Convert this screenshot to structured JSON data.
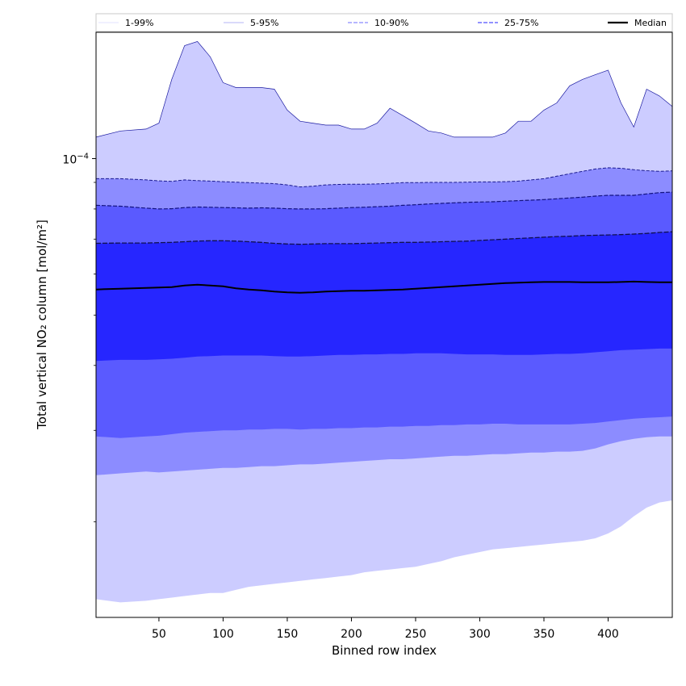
{
  "chart_data": {
    "type": "area",
    "xlabel": "Binned row index",
    "ylabel": "Total vertical NO₂ column [mol/m²]",
    "yscale": "log",
    "xlim": [
      1,
      450
    ],
    "ylim": [
      1.31e-05,
      0.000175
    ],
    "x_ticks": [
      50,
      100,
      150,
      200,
      250,
      300,
      350,
      400
    ],
    "x_tick_labels": [
      "50",
      "100",
      "150",
      "200",
      "250",
      "300",
      "350",
      "400"
    ],
    "y_major_tick": 0.0001,
    "y_major_tick_label": {
      "base": "10",
      "exponent": "−4"
    },
    "y_minor_ticks": [
      2e-05,
      3e-05,
      4e-05,
      5e-05,
      6e-05,
      7e-05,
      8e-05,
      9e-05
    ],
    "grid": false,
    "legend_position": "top",
    "colors": {
      "band_1_99": "#ccccff",
      "band_5_95": "#8c8cff",
      "band_10_90": "#5a5aff",
      "band_25_75": "#2626ff",
      "median": "#000000",
      "line_1_99": "#d6d6ff",
      "line_5_95": "#1a1aa0",
      "line_10_90": "#1a1a90",
      "line_25_75": "#121280"
    },
    "legend": [
      {
        "label": "1-99%",
        "style": "thin",
        "color": "#d6d6ff"
      },
      {
        "label": "5-95%",
        "style": "thin",
        "color": "#9c9cf0"
      },
      {
        "label": "10-90%",
        "style": "dashed",
        "color": "#8a8aff"
      },
      {
        "label": "25-75%",
        "style": "dashed",
        "color": "#5050ff"
      },
      {
        "label": "Median",
        "style": "solid-thick",
        "color": "#000000"
      }
    ],
    "x": [
      1,
      20,
      40,
      50,
      60,
      70,
      80,
      90,
      100,
      110,
      120,
      130,
      140,
      150,
      160,
      170,
      180,
      190,
      200,
      210,
      220,
      230,
      240,
      250,
      260,
      270,
      280,
      290,
      300,
      310,
      320,
      330,
      340,
      350,
      360,
      370,
      380,
      390,
      400,
      410,
      420,
      430,
      440,
      450
    ],
    "series": [
      {
        "name": "p1",
        "values": [
          1.42e-05,
          1.4e-05,
          1.41e-05,
          1.42e-05,
          1.43e-05,
          1.44e-05,
          1.45e-05,
          1.46e-05,
          1.46e-05,
          1.48e-05,
          1.5e-05,
          1.51e-05,
          1.52e-05,
          1.53e-05,
          1.54e-05,
          1.55e-05,
          1.56e-05,
          1.57e-05,
          1.58e-05,
          1.6e-05,
          1.61e-05,
          1.62e-05,
          1.63e-05,
          1.64e-05,
          1.66e-05,
          1.68e-05,
          1.71e-05,
          1.73e-05,
          1.75e-05,
          1.77e-05,
          1.78e-05,
          1.79e-05,
          1.8e-05,
          1.81e-05,
          1.82e-05,
          1.83e-05,
          1.84e-05,
          1.86e-05,
          1.9e-05,
          1.96e-05,
          2.05e-05,
          2.13e-05,
          2.18e-05,
          2.2e-05
        ]
      },
      {
        "name": "p5",
        "values": [
          2.46e-05,
          2.48e-05,
          2.5e-05,
          2.49e-05,
          2.5e-05,
          2.51e-05,
          2.52e-05,
          2.53e-05,
          2.54e-05,
          2.54e-05,
          2.55e-05,
          2.56e-05,
          2.56e-05,
          2.57e-05,
          2.58e-05,
          2.58e-05,
          2.59e-05,
          2.6e-05,
          2.61e-05,
          2.62e-05,
          2.63e-05,
          2.64e-05,
          2.64e-05,
          2.65e-05,
          2.66e-05,
          2.67e-05,
          2.68e-05,
          2.68e-05,
          2.69e-05,
          2.7e-05,
          2.7e-05,
          2.71e-05,
          2.72e-05,
          2.72e-05,
          2.73e-05,
          2.73e-05,
          2.74e-05,
          2.77e-05,
          2.82e-05,
          2.86e-05,
          2.89e-05,
          2.91e-05,
          2.92e-05,
          2.92e-05
        ]
      },
      {
        "name": "p10",
        "values": [
          2.92e-05,
          2.9e-05,
          2.92e-05,
          2.93e-05,
          2.95e-05,
          2.97e-05,
          2.98e-05,
          2.99e-05,
          3e-05,
          3e-05,
          3.01e-05,
          3.01e-05,
          3.02e-05,
          3.02e-05,
          3.01e-05,
          3.02e-05,
          3.02e-05,
          3.03e-05,
          3.03e-05,
          3.04e-05,
          3.04e-05,
          3.05e-05,
          3.05e-05,
          3.06e-05,
          3.06e-05,
          3.07e-05,
          3.07e-05,
          3.08e-05,
          3.08e-05,
          3.09e-05,
          3.09e-05,
          3.08e-05,
          3.08e-05,
          3.08e-05,
          3.08e-05,
          3.08e-05,
          3.09e-05,
          3.1e-05,
          3.12e-05,
          3.14e-05,
          3.16e-05,
          3.17e-05,
          3.18e-05,
          3.19e-05
        ]
      },
      {
        "name": "p25",
        "values": [
          4.08e-05,
          4.1e-05,
          4.1e-05,
          4.11e-05,
          4.12e-05,
          4.14e-05,
          4.16e-05,
          4.17e-05,
          4.18e-05,
          4.18e-05,
          4.18e-05,
          4.18e-05,
          4.17e-05,
          4.16e-05,
          4.16e-05,
          4.17e-05,
          4.18e-05,
          4.19e-05,
          4.19e-05,
          4.2e-05,
          4.2e-05,
          4.21e-05,
          4.21e-05,
          4.22e-05,
          4.22e-05,
          4.22e-05,
          4.21e-05,
          4.2e-05,
          4.2e-05,
          4.2e-05,
          4.19e-05,
          4.19e-05,
          4.19e-05,
          4.2e-05,
          4.21e-05,
          4.21e-05,
          4.22e-05,
          4.24e-05,
          4.26e-05,
          4.28e-05,
          4.29e-05,
          4.3e-05,
          4.31e-05,
          4.31e-05
        ]
      },
      {
        "name": "Median",
        "values": [
          5.6e-05,
          5.62e-05,
          5.64e-05,
          5.65e-05,
          5.66e-05,
          5.7e-05,
          5.72e-05,
          5.7e-05,
          5.68e-05,
          5.63e-05,
          5.6e-05,
          5.58e-05,
          5.55e-05,
          5.53e-05,
          5.52e-05,
          5.53e-05,
          5.55e-05,
          5.56e-05,
          5.57e-05,
          5.57e-05,
          5.58e-05,
          5.59e-05,
          5.6e-05,
          5.62e-05,
          5.64e-05,
          5.66e-05,
          5.68e-05,
          5.7e-05,
          5.72e-05,
          5.74e-05,
          5.76e-05,
          5.77e-05,
          5.78e-05,
          5.79e-05,
          5.79e-05,
          5.79e-05,
          5.78e-05,
          5.78e-05,
          5.78e-05,
          5.79e-05,
          5.8e-05,
          5.79e-05,
          5.78e-05,
          5.78e-05
        ]
      },
      {
        "name": "p75",
        "values": [
          6.87e-05,
          6.88e-05,
          6.88e-05,
          6.89e-05,
          6.9e-05,
          6.92e-05,
          6.94e-05,
          6.95e-05,
          6.95e-05,
          6.94e-05,
          6.92e-05,
          6.9e-05,
          6.87e-05,
          6.85e-05,
          6.84e-05,
          6.85e-05,
          6.86e-05,
          6.86e-05,
          6.86e-05,
          6.87e-05,
          6.88e-05,
          6.89e-05,
          6.9e-05,
          6.9e-05,
          6.91e-05,
          6.92e-05,
          6.93e-05,
          6.94e-05,
          6.96e-05,
          6.98e-05,
          7e-05,
          7.02e-05,
          7.04e-05,
          7.06e-05,
          7.08e-05,
          7.09e-05,
          7.11e-05,
          7.12e-05,
          7.13e-05,
          7.14e-05,
          7.16e-05,
          7.18e-05,
          7.21e-05,
          7.23e-05
        ]
      },
      {
        "name": "p90",
        "values": [
          8.13e-05,
          8.1e-05,
          8.03e-05,
          8e-05,
          8.01e-05,
          8.05e-05,
          8.07e-05,
          8.06e-05,
          8.05e-05,
          8.04e-05,
          8.03e-05,
          8.04e-05,
          8.03e-05,
          8.01e-05,
          8e-05,
          8e-05,
          8.01e-05,
          8.03e-05,
          8.05e-05,
          8.06e-05,
          8.08e-05,
          8.1e-05,
          8.13e-05,
          8.15e-05,
          8.18e-05,
          8.2e-05,
          8.22e-05,
          8.24e-05,
          8.25e-05,
          8.26e-05,
          8.28e-05,
          8.3e-05,
          8.32e-05,
          8.34e-05,
          8.37e-05,
          8.4e-05,
          8.43e-05,
          8.47e-05,
          8.5e-05,
          8.5e-05,
          8.5e-05,
          8.55e-05,
          8.6e-05,
          8.62e-05
        ]
      },
      {
        "name": "p95",
        "values": [
          9.15e-05,
          9.15e-05,
          9.1e-05,
          9.06e-05,
          9.04e-05,
          9.1e-05,
          9.07e-05,
          9.05e-05,
          9.03e-05,
          9.01e-05,
          8.99e-05,
          8.97e-05,
          8.95e-05,
          8.9e-05,
          8.82e-05,
          8.85e-05,
          8.9e-05,
          8.92e-05,
          8.93e-05,
          8.93e-05,
          8.94e-05,
          8.96e-05,
          8.99e-05,
          8.99e-05,
          9e-05,
          9e-05,
          9e-05,
          9.01e-05,
          9.02e-05,
          9.02e-05,
          9.03e-05,
          9.05e-05,
          9.1e-05,
          9.15e-05,
          9.25e-05,
          9.35e-05,
          9.45e-05,
          9.55e-05,
          9.6e-05,
          9.58e-05,
          9.52e-05,
          9.48e-05,
          9.45e-05,
          9.47e-05
        ]
      },
      {
        "name": "p99",
        "values": [
          0.00011,
          0.000113,
          0.000114,
          0.000117,
          0.000142,
          0.000165,
          0.000168,
          0.000157,
          0.00014,
          0.000137,
          0.000137,
          0.000137,
          0.000136,
          0.000124,
          0.000118,
          0.000117,
          0.000116,
          0.000116,
          0.000114,
          0.000114,
          0.000117,
          0.000125,
          0.000121,
          0.000117,
          0.000113,
          0.000112,
          0.00011,
          0.00011,
          0.00011,
          0.00011,
          0.000112,
          0.000118,
          0.000118,
          0.000124,
          0.000128,
          0.000138,
          0.000142,
          0.000145,
          0.000148,
          0.000128,
          0.000115,
          0.000136,
          0.000132,
          0.000126
        ]
      }
    ]
  }
}
